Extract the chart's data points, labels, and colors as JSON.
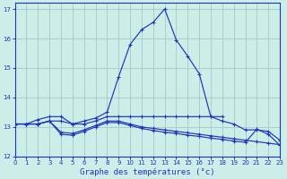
{
  "title": "Graphe des températures (°c)",
  "bg_color": "#cceee8",
  "grid_color": "#aacccc",
  "line_color": "#2233bb",
  "xlim": [
    0,
    23
  ],
  "ylim": [
    12.0,
    17.2
  ],
  "yticks": [
    12,
    13,
    14,
    15,
    16,
    17
  ],
  "xticks": [
    0,
    1,
    2,
    3,
    4,
    5,
    6,
    7,
    8,
    9,
    10,
    11,
    12,
    13,
    14,
    15,
    16,
    17,
    18,
    19,
    20,
    21,
    22,
    23
  ],
  "line1_x": [
    0,
    1,
    2,
    3,
    4,
    5,
    6,
    7,
    8,
    9,
    10,
    11,
    12,
    13,
    14,
    15,
    16,
    17,
    18,
    19,
    20,
    21,
    22,
    23
  ],
  "line1_y": [
    13.1,
    13.1,
    13.1,
    13.2,
    13.2,
    13.1,
    13.2,
    13.3,
    13.5,
    14.7,
    15.8,
    16.3,
    16.55,
    17.0,
    15.95,
    15.4,
    14.8,
    13.35,
    13.2,
    13.1,
    12.9,
    12.9,
    12.85,
    12.55
  ],
  "line2_x": [
    0,
    1,
    2,
    3,
    4,
    5,
    6,
    7,
    8,
    9,
    10,
    11,
    12,
    13,
    14,
    15,
    16,
    17,
    18
  ],
  "line2_y": [
    13.1,
    13.1,
    13.25,
    13.35,
    13.35,
    13.1,
    13.1,
    13.2,
    13.35,
    13.35,
    13.35,
    13.35,
    13.35,
    13.35,
    13.35,
    13.35,
    13.35,
    13.35,
    13.35
  ],
  "line3_x": [
    0,
    1,
    2,
    3,
    4,
    5,
    6,
    7,
    8,
    9,
    10,
    11,
    12,
    13,
    14,
    15,
    16,
    17,
    18,
    19,
    20,
    21,
    22,
    23
  ],
  "line3_y": [
    13.1,
    13.1,
    13.1,
    13.2,
    12.82,
    12.78,
    12.9,
    13.05,
    13.2,
    13.2,
    13.1,
    13.0,
    12.95,
    12.9,
    12.85,
    12.8,
    12.75,
    12.7,
    12.65,
    12.6,
    12.55,
    12.5,
    12.45,
    12.4
  ],
  "line4_x": [
    0,
    1,
    2,
    3,
    4,
    5,
    6,
    7,
    8,
    9,
    10,
    11,
    12,
    13,
    14,
    15,
    16,
    17,
    18,
    19,
    20,
    21,
    22,
    23
  ],
  "line4_y": [
    13.1,
    13.1,
    13.1,
    13.2,
    12.75,
    12.72,
    12.85,
    13.0,
    13.15,
    13.15,
    13.05,
    12.95,
    12.88,
    12.82,
    12.78,
    12.72,
    12.68,
    12.62,
    12.58,
    12.52,
    12.48,
    12.92,
    12.75,
    12.38
  ]
}
